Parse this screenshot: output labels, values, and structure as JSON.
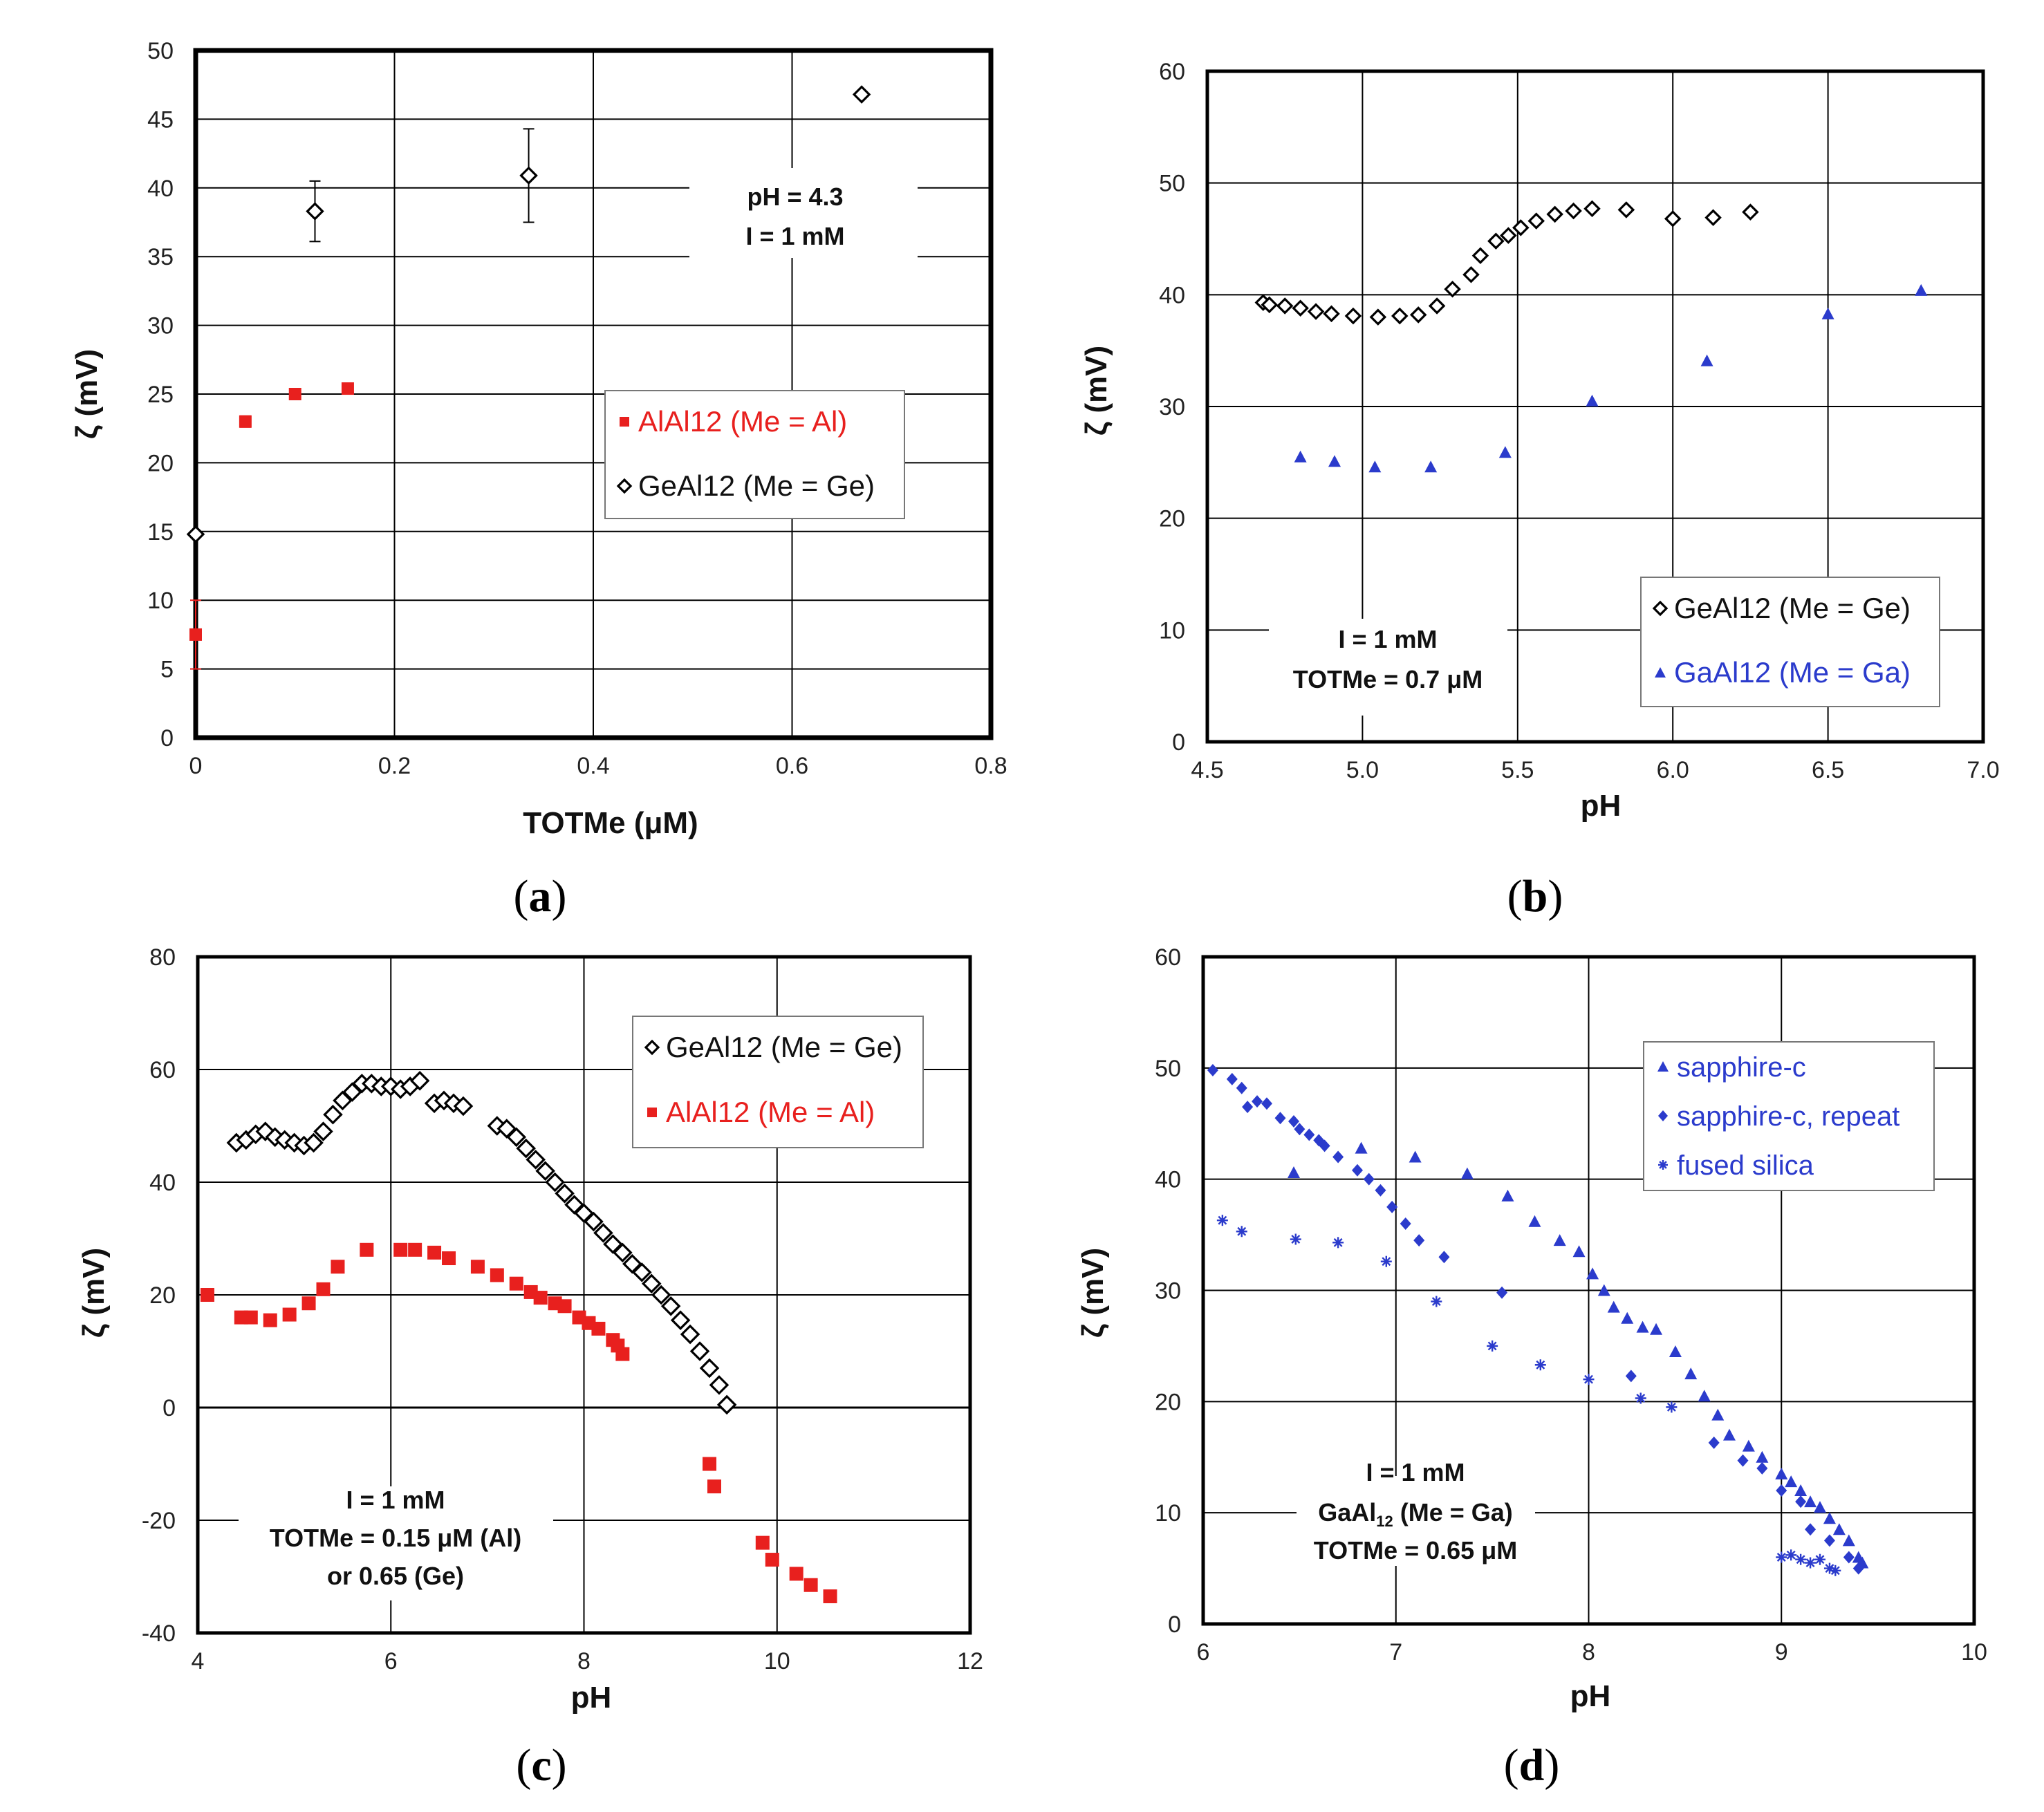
{
  "colors": {
    "red": "#e8201e",
    "blue": "#2b3bcc",
    "black": "#000000",
    "grid": "#000000"
  },
  "chart_data": [
    {
      "id": "a",
      "type": "scatter",
      "caption_letter": "a",
      "xlabel": "TOTMe (μM)",
      "ylabel": "ζ (mV)",
      "xlim": [
        0,
        0.8
      ],
      "ylim": [
        0,
        50
      ],
      "xticks": [
        "0",
        "0.2",
        "0.4",
        "0.6",
        "0.8"
      ],
      "yticks": [
        "0",
        "5",
        "10",
        "15",
        "20",
        "25",
        "30",
        "35",
        "40",
        "45",
        "50"
      ],
      "annotation": [
        "pH = 4.3",
        "I = 1 mM"
      ],
      "series": [
        {
          "name": "AlAl12 (Me = Al)",
          "marker": "square",
          "color": "red",
          "points": [
            [
              0,
              7.5,
              2.5
            ],
            [
              0.05,
              23,
              0.4
            ],
            [
              0.1,
              25,
              0.3
            ],
            [
              0.153,
              25.4,
              0.3
            ]
          ]
        },
        {
          "name": "GeAl12 (Me = Ge)",
          "marker": "diamond-open",
          "color": "black",
          "points": [
            [
              0,
              14.8,
              0
            ],
            [
              0.12,
              38.3,
              2.2
            ],
            [
              0.335,
              40.9,
              3.4
            ],
            [
              0.67,
              46.8,
              0
            ]
          ]
        }
      ]
    },
    {
      "id": "b",
      "type": "scatter",
      "caption_letter": "b",
      "xlabel": "pH",
      "ylabel": "ζ (mV)",
      "xlim": [
        4.5,
        7.0
      ],
      "ylim": [
        0,
        60
      ],
      "xticks": [
        "4.5",
        "5.0",
        "5.5",
        "6.0",
        "6.5",
        "7.0"
      ],
      "yticks": [
        "0",
        "10",
        "20",
        "30",
        "40",
        "50",
        "60"
      ],
      "annotation": [
        "I = 1 mM",
        "TOTMe = 0.7 μM"
      ],
      "series": [
        {
          "name": "GeAl12 (Me = Ge)",
          "marker": "diamond-open",
          "color": "black",
          "points": [
            [
              4.68,
              39.3
            ],
            [
              4.7,
              39.1
            ],
            [
              4.75,
              39.0
            ],
            [
              4.8,
              38.8
            ],
            [
              4.85,
              38.5
            ],
            [
              4.9,
              38.3
            ],
            [
              4.97,
              38.1
            ],
            [
              5.05,
              38.0
            ],
            [
              5.12,
              38.1
            ],
            [
              5.18,
              38.2
            ],
            [
              5.24,
              39.0
            ],
            [
              5.29,
              40.5
            ],
            [
              5.35,
              41.8
            ],
            [
              5.38,
              43.5
            ],
            [
              5.43,
              44.8
            ],
            [
              5.47,
              45.3
            ],
            [
              5.51,
              46.0
            ],
            [
              5.56,
              46.6
            ],
            [
              5.62,
              47.2
            ],
            [
              5.68,
              47.5
            ],
            [
              5.74,
              47.7
            ],
            [
              5.85,
              47.6
            ],
            [
              6.0,
              46.8
            ],
            [
              6.13,
              46.9
            ],
            [
              6.25,
              47.4
            ]
          ]
        },
        {
          "name": "GaAl12 (Me = Ga)",
          "marker": "triangle",
          "color": "blue",
          "points": [
            [
              4.8,
              25.5
            ],
            [
              4.91,
              25.1
            ],
            [
              5.04,
              24.6
            ],
            [
              5.22,
              24.6
            ],
            [
              5.46,
              25.9
            ],
            [
              5.74,
              30.5
            ],
            [
              6.11,
              34.1
            ],
            [
              6.5,
              38.3
            ],
            [
              6.8,
              40.4
            ]
          ]
        }
      ]
    },
    {
      "id": "c",
      "type": "scatter",
      "caption_letter": "c",
      "xlabel": "pH",
      "ylabel": "ζ (mV)",
      "xlim": [
        4,
        12
      ],
      "ylim": [
        -40,
        80
      ],
      "xticks": [
        "4",
        "6",
        "8",
        "10",
        "12"
      ],
      "yticks": [
        "-40",
        "-20",
        "0",
        "20",
        "40",
        "60",
        "80"
      ],
      "annotation": [
        "I = 1 mM",
        "TOTMe = 0.15 μM (Al)",
        "or 0.65 (Ge)"
      ],
      "series": [
        {
          "name": "GeAl12 (Me = Ge)",
          "marker": "diamond-open",
          "color": "black",
          "points": [
            [
              4.4,
              47
            ],
            [
              4.5,
              47.5
            ],
            [
              4.6,
              48.5
            ],
            [
              4.7,
              49
            ],
            [
              4.8,
              48
            ],
            [
              4.9,
              47.5
            ],
            [
              5.0,
              47
            ],
            [
              5.1,
              46.5
            ],
            [
              5.2,
              47
            ],
            [
              5.3,
              49
            ],
            [
              5.4,
              52
            ],
            [
              5.5,
              54.5
            ],
            [
              5.6,
              56
            ],
            [
              5.7,
              57.5
            ],
            [
              5.8,
              57.5
            ],
            [
              5.9,
              57
            ],
            [
              6.0,
              57
            ],
            [
              6.1,
              56.5
            ],
            [
              6.2,
              57
            ],
            [
              6.3,
              58
            ],
            [
              6.45,
              54
            ],
            [
              6.55,
              54.5
            ],
            [
              6.65,
              54
            ],
            [
              6.75,
              53.5
            ],
            [
              7.1,
              50
            ],
            [
              7.2,
              49.5
            ],
            [
              7.3,
              48
            ],
            [
              7.4,
              46
            ],
            [
              7.5,
              44
            ],
            [
              7.6,
              42
            ],
            [
              7.7,
              40
            ],
            [
              7.8,
              38
            ],
            [
              7.9,
              36
            ],
            [
              8.0,
              34.5
            ],
            [
              8.1,
              33
            ],
            [
              8.2,
              31
            ],
            [
              8.3,
              29
            ],
            [
              8.4,
              27.5
            ],
            [
              8.5,
              25.5
            ],
            [
              8.6,
              24
            ],
            [
              8.7,
              22
            ],
            [
              8.8,
              20
            ],
            [
              8.9,
              18
            ],
            [
              9.0,
              15.5
            ],
            [
              9.1,
              13
            ],
            [
              9.2,
              10
            ],
            [
              9.3,
              7
            ],
            [
              9.4,
              4
            ],
            [
              9.48,
              0.5
            ]
          ]
        },
        {
          "name": "AlAl12 (Me = Al)",
          "marker": "square",
          "color": "red",
          "points": [
            [
              4.1,
              20
            ],
            [
              4.45,
              16
            ],
            [
              4.55,
              16
            ],
            [
              4.75,
              15.5
            ],
            [
              4.95,
              16.5
            ],
            [
              5.15,
              18.5
            ],
            [
              5.3,
              21
            ],
            [
              5.45,
              25
            ],
            [
              5.75,
              28
            ],
            [
              6.1,
              28
            ],
            [
              6.25,
              28
            ],
            [
              6.45,
              27.5
            ],
            [
              6.6,
              26.5
            ],
            [
              6.9,
              25
            ],
            [
              7.1,
              23.5
            ],
            [
              7.3,
              22
            ],
            [
              7.45,
              20.5
            ],
            [
              7.55,
              19.5
            ],
            [
              7.7,
              18.5
            ],
            [
              7.8,
              18
            ],
            [
              7.95,
              16
            ],
            [
              8.05,
              15
            ],
            [
              8.15,
              14
            ],
            [
              8.3,
              12
            ],
            [
              8.35,
              11
            ],
            [
              8.4,
              9.5
            ],
            [
              9.3,
              -10
            ],
            [
              9.35,
              -14
            ],
            [
              9.85,
              -24
            ],
            [
              9.95,
              -27
            ],
            [
              10.2,
              -29.5
            ],
            [
              10.35,
              -31.5
            ],
            [
              10.55,
              -33.5
            ]
          ]
        }
      ]
    },
    {
      "id": "d",
      "type": "scatter",
      "caption_letter": "d",
      "xlabel": "pH",
      "ylabel": "ζ (mV)",
      "xlim": [
        6,
        10
      ],
      "ylim": [
        0,
        60
      ],
      "xticks": [
        "6",
        "7",
        "8",
        "9",
        "10"
      ],
      "yticks": [
        "0",
        "10",
        "20",
        "30",
        "40",
        "50",
        "60"
      ],
      "annotation": [
        "I = 1 mM",
        "GaAl",
        "12",
        " (Me = Ga)",
        "TOTMe = 0.65 μM"
      ],
      "series": [
        {
          "name": "sapphire-c",
          "marker": "triangle",
          "color": "blue",
          "points": [
            [
              6.47,
              40.6
            ],
            [
              6.82,
              42.8
            ],
            [
              7.1,
              42.0
            ],
            [
              7.37,
              40.5
            ],
            [
              7.58,
              38.5
            ],
            [
              7.72,
              36.2
            ],
            [
              7.85,
              34.5
            ],
            [
              7.95,
              33.5
            ],
            [
              8.02,
              31.5
            ],
            [
              8.08,
              30
            ],
            [
              8.13,
              28.5
            ],
            [
              8.2,
              27.5
            ],
            [
              8.28,
              26.7
            ],
            [
              8.35,
              26.5
            ],
            [
              8.45,
              24.5
            ],
            [
              8.53,
              22.5
            ],
            [
              8.6,
              20.5
            ],
            [
              8.67,
              18.8
            ],
            [
              8.73,
              17
            ],
            [
              8.83,
              16
            ],
            [
              8.9,
              15
            ],
            [
              9.0,
              13.5
            ],
            [
              9.05,
              12.8
            ],
            [
              9.1,
              12
            ],
            [
              9.15,
              11
            ],
            [
              9.2,
              10.5
            ],
            [
              9.25,
              9.5
            ],
            [
              9.3,
              8.5
            ],
            [
              9.35,
              7.5
            ],
            [
              9.4,
              6
            ],
            [
              9.42,
              5.5
            ]
          ]
        },
        {
          "name": "sapphire-c, repeat",
          "marker": "diamond",
          "color": "blue",
          "points": [
            [
              6.05,
              49.8
            ],
            [
              6.15,
              49.0
            ],
            [
              6.2,
              48.2
            ],
            [
              6.23,
              46.5
            ],
            [
              6.28,
              47.0
            ],
            [
              6.33,
              46.8
            ],
            [
              6.4,
              45.5
            ],
            [
              6.47,
              45.2
            ],
            [
              6.5,
              44.5
            ],
            [
              6.55,
              44.0
            ],
            [
              6.6,
              43.5
            ],
            [
              6.63,
              43.0
            ],
            [
              6.7,
              42.0
            ],
            [
              6.8,
              40.8
            ],
            [
              6.86,
              40.0
            ],
            [
              6.92,
              39.0
            ],
            [
              6.98,
              37.5
            ],
            [
              7.05,
              36.0
            ],
            [
              7.12,
              34.5
            ],
            [
              7.25,
              33.0
            ],
            [
              7.55,
              29.8
            ],
            [
              8.22,
              22.3
            ],
            [
              8.65,
              16.3
            ],
            [
              8.8,
              14.7
            ],
            [
              8.9,
              14.0
            ],
            [
              9.0,
              12.0
            ],
            [
              9.1,
              11.0
            ],
            [
              9.15,
              8.5
            ],
            [
              9.25,
              7.5
            ],
            [
              9.35,
              6.0
            ],
            [
              9.4,
              5.0
            ]
          ]
        },
        {
          "name": "fused silica",
          "marker": "star",
          "color": "blue",
          "points": [
            [
              6.1,
              36.3
            ],
            [
              6.2,
              35.3
            ],
            [
              6.48,
              34.6
            ],
            [
              6.7,
              34.3
            ],
            [
              6.95,
              32.6
            ],
            [
              7.21,
              29.0
            ],
            [
              7.5,
              25.0
            ],
            [
              7.75,
              23.3
            ],
            [
              8.0,
              22.0
            ],
            [
              8.27,
              20.3
            ],
            [
              8.43,
              19.5
            ],
            [
              9.0,
              6.0
            ],
            [
              9.05,
              6.2
            ],
            [
              9.1,
              5.8
            ],
            [
              9.15,
              5.5
            ],
            [
              9.2,
              5.8
            ],
            [
              9.25,
              5.0
            ],
            [
              9.28,
              4.8
            ]
          ]
        }
      ]
    }
  ]
}
